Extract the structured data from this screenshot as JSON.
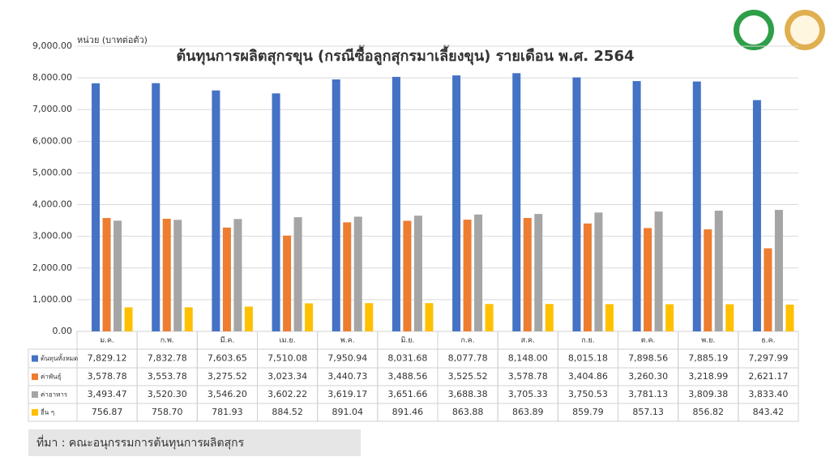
{
  "chart_data": {
    "type": "bar",
    "title": "ต้นทุนการผลิตสุกรขุน (กรณีซื้อลูกสุกรมาเลี้ยงขุน) รายเดือน พ.ศ. 2564",
    "y_axis_label": "หน่วย (บาทต่อตัว)",
    "source": "ที่มา : คณะอนุกรรมการต้นทุนการผลิตสุกร",
    "categories": [
      "ม.ค.",
      "ก.พ.",
      "มี.ค.",
      "เม.ย.",
      "พ.ค.",
      "มิ.ย.",
      "ก.ค.",
      "ส.ค.",
      "ก.ย.",
      "ต.ค.",
      "พ.ย.",
      "ธ.ค."
    ],
    "series": [
      {
        "name": "ต้นทุนทั้งหมด",
        "color": "#4472c4",
        "values": [
          7829.12,
          7832.78,
          7603.65,
          7510.08,
          7950.94,
          8031.68,
          8077.78,
          8148.0,
          8015.18,
          7898.56,
          7885.19,
          7297.99
        ],
        "value_labels": [
          "7,829.12",
          "7,832.78",
          "7,603.65",
          "7,510.08",
          "7,950.94",
          "8,031.68",
          "8,077.78",
          "8,148.00",
          "8,015.18",
          "7,898.56",
          "7,885.19",
          "7,297.99"
        ]
      },
      {
        "name": "ค่าพันธุ์",
        "color": "#ed7d31",
        "values": [
          3578.78,
          3553.78,
          3275.52,
          3023.34,
          3440.73,
          3488.56,
          3525.52,
          3578.78,
          3404.86,
          3260.3,
          3218.99,
          2621.17
        ],
        "value_labels": [
          "3,578.78",
          "3,553.78",
          "3,275.52",
          "3,023.34",
          "3,440.73",
          "3,488.56",
          "3,525.52",
          "3,578.78",
          "3,404.86",
          "3,260.30",
          "3,218.99",
          "2,621.17"
        ]
      },
      {
        "name": "ค่าอาหาร",
        "color": "#a5a5a5",
        "values": [
          3493.47,
          3520.3,
          3546.2,
          3602.22,
          3619.17,
          3651.66,
          3688.38,
          3705.33,
          3750.53,
          3781.13,
          3809.38,
          3833.4
        ],
        "value_labels": [
          "3,493.47",
          "3,520.30",
          "3,546.20",
          "3,602.22",
          "3,619.17",
          "3,651.66",
          "3,688.38",
          "3,705.33",
          "3,750.53",
          "3,781.13",
          "3,809.38",
          "3,833.40"
        ]
      },
      {
        "name": "อื่น ๆ",
        "color": "#ffc000",
        "values": [
          756.87,
          758.7,
          781.93,
          884.52,
          891.04,
          891.46,
          863.88,
          863.89,
          859.79,
          857.13,
          856.82,
          843.42
        ],
        "value_labels": [
          "756.87",
          "758.70",
          "781.93",
          "884.52",
          "891.04",
          "891.46",
          "863.88",
          "863.89",
          "859.79",
          "857.13",
          "856.82",
          "843.42"
        ]
      }
    ],
    "ylim": [
      0,
      9000
    ],
    "yticks": [
      {
        "value": 0,
        "label": "0.00"
      },
      {
        "value": 1000,
        "label": "1,000.00"
      },
      {
        "value": 2000,
        "label": "2,000.00"
      },
      {
        "value": 3000,
        "label": "3,000.00"
      },
      {
        "value": 4000,
        "label": "4,000.00"
      },
      {
        "value": 5000,
        "label": "5,000.00"
      },
      {
        "value": 6000,
        "label": "6,000.00"
      },
      {
        "value": 7000,
        "label": "7,000.00"
      },
      {
        "value": 8000,
        "label": "8,000.00"
      },
      {
        "value": 9000,
        "label": "9,000.00"
      }
    ],
    "grid": true
  }
}
